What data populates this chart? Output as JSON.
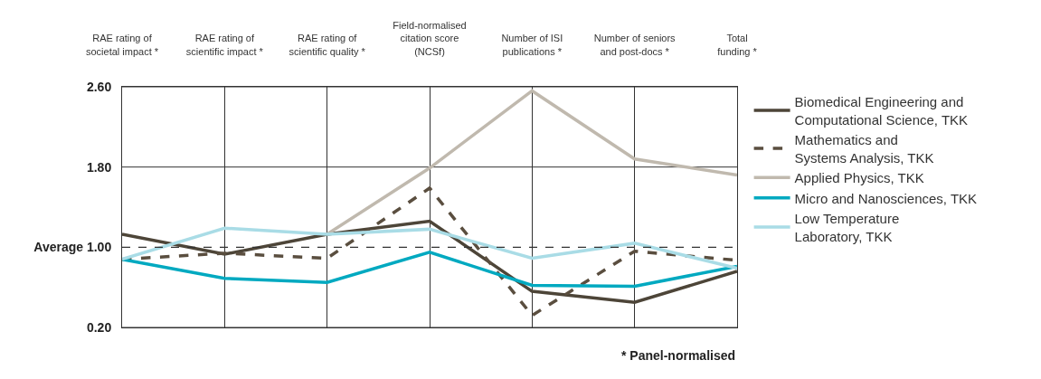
{
  "chart_data": {
    "type": "line",
    "categories": [
      "RAE rating of\nsocietal impact *",
      "RAE rating of\nscientific impact *",
      "RAE rating of\nscientific quality *",
      "Field-normalised\ncitation score\n(NCSf)",
      "Number of ISI\npublications *",
      "Number of seniors\nand post-docs *",
      "Total\nfunding *"
    ],
    "series": [
      {
        "name": "Biomedical Engineering and\nComputational Science, TKK",
        "color": "#4d4538",
        "values": [
          1.13,
          0.93,
          1.13,
          1.26,
          0.56,
          0.45,
          0.76
        ]
      },
      {
        "name": "Mathematics and\nSystems Analysis, TKK",
        "color": "#5a4e3f",
        "line_style": "dashed",
        "values": [
          0.88,
          0.94,
          0.89,
          1.59,
          0.32,
          0.96,
          0.87
        ]
      },
      {
        "name": "Applied Physics, TKK",
        "color": "#c0b9ae",
        "values": [
          null,
          null,
          1.13,
          1.79,
          2.56,
          1.88,
          1.72
        ]
      },
      {
        "name": "Micro and Nanosciences, TKK",
        "color": "#00a9c0",
        "values": [
          0.88,
          0.69,
          0.65,
          0.95,
          0.62,
          0.61,
          0.81
        ]
      },
      {
        "name": "Low Temperature\nLaboratory, TKK",
        "color": "#a9dce6",
        "values": [
          0.88,
          1.19,
          1.13,
          1.18,
          0.89,
          1.04,
          0.79
        ]
      }
    ],
    "ylim": [
      0.2,
      2.6
    ],
    "yticks": [
      {
        "value": 2.6,
        "label": "2.60"
      },
      {
        "value": 1.8,
        "label": "1.80"
      },
      {
        "value": 1.0,
        "label": "Average 1.00"
      },
      {
        "value": 0.2,
        "label": "0.20"
      }
    ],
    "ref_lines": [
      {
        "axis": "y",
        "value": 1.0,
        "line_style": "dashed",
        "color": "#333333"
      }
    ],
    "grid": true,
    "legend": "right",
    "annotations": [
      "* Panel-normalised"
    ]
  }
}
